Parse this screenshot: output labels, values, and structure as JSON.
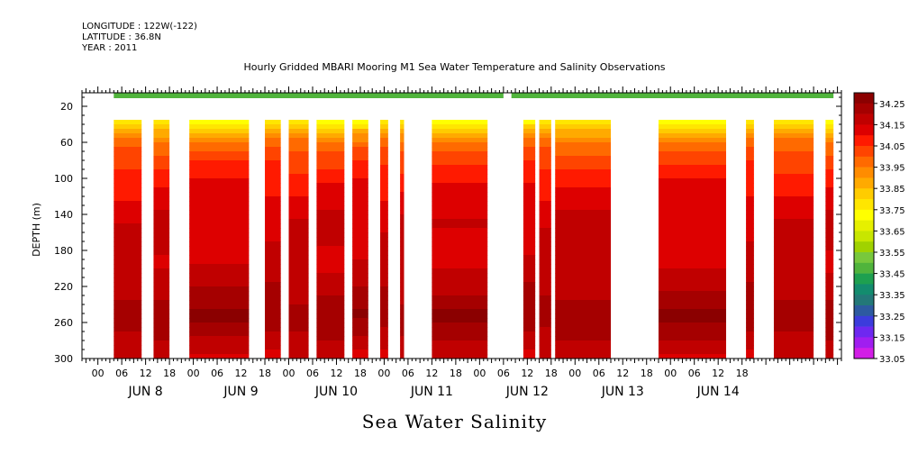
{
  "header": {
    "longitude": "LONGITUDE : 122W(-122)",
    "latitude": "LATITUDE : 36.8N",
    "year": "YEAR : 2011"
  },
  "chart_data": {
    "type": "heatmap",
    "title": "Hourly Gridded MBARI Mooring M1 Sea Water Temperature and Salinity Observations",
    "xlabel": "Sea Water Salinity",
    "ylabel": "DEPTH (m)",
    "ylim": [
      300,
      5
    ],
    "y_ticks": [
      20,
      60,
      100,
      140,
      180,
      220,
      260,
      300
    ],
    "x_hour_ticks": [
      "00",
      "06",
      "12",
      "18",
      "00",
      "06",
      "12",
      "18",
      "00",
      "06",
      "12",
      "18",
      "00",
      "06",
      "12",
      "18",
      "00",
      "06",
      "12",
      "18",
      "00",
      "06",
      "12",
      "18",
      "00",
      "06",
      "12",
      "18"
    ],
    "x_date_labels": [
      "JUN  8",
      "JUN  9",
      "JUN 10",
      "JUN 11",
      "JUN 12",
      "JUN 13",
      "JUN 14"
    ],
    "x_range_hours": [
      -4,
      187
    ],
    "colorbar": {
      "levels": [
        "34.25",
        "34.15",
        "34.05",
        "33.95",
        "33.85",
        "33.75",
        "33.65",
        "33.55",
        "33.45",
        "33.35",
        "33.25",
        "33.15",
        "33.05"
      ],
      "colors": [
        "#8b0000",
        "#a50000",
        "#c00000",
        "#dd0000",
        "#ff1a00",
        "#ff4400",
        "#ff6a00",
        "#ff8c00",
        "#ffaa00",
        "#ffcc00",
        "#ffe600",
        "#ffff00",
        "#e6f000",
        "#c8e600",
        "#a0d200",
        "#78c83c",
        "#50b43c",
        "#1ea050",
        "#138c6e",
        "#237878",
        "#2d5aa0",
        "#3c3cdc",
        "#6e28f0",
        "#a01ef0",
        "#d21ee6"
      ]
    },
    "surface_layer": {
      "depth_range": [
        5,
        11
      ],
      "salinity": 33.45,
      "gaps_hours": [
        [
          102,
          104
        ]
      ]
    },
    "deep_valid_segments_hours": [
      [
        4,
        11
      ],
      [
        14,
        18
      ],
      [
        23,
        38
      ],
      [
        42,
        46
      ],
      [
        48,
        53
      ],
      [
        55,
        62
      ],
      [
        64,
        68
      ],
      [
        71,
        73
      ],
      [
        76,
        77
      ],
      [
        84,
        98
      ],
      [
        107,
        110
      ],
      [
        111,
        114
      ],
      [
        115,
        129
      ],
      [
        141,
        158
      ],
      [
        163,
        165
      ],
      [
        170,
        180
      ],
      [
        183,
        185
      ]
    ],
    "salinity_profile": {
      "depths": [
        35,
        45,
        55,
        70,
        90,
        110,
        130,
        150,
        170,
        190,
        210,
        230,
        250,
        265,
        280,
        300
      ],
      "values": [
        33.7,
        33.82,
        33.92,
        34.0,
        34.05,
        34.09,
        34.12,
        34.14,
        34.15,
        34.15,
        34.17,
        34.2,
        34.24,
        34.22,
        34.18,
        34.14
      ]
    }
  }
}
